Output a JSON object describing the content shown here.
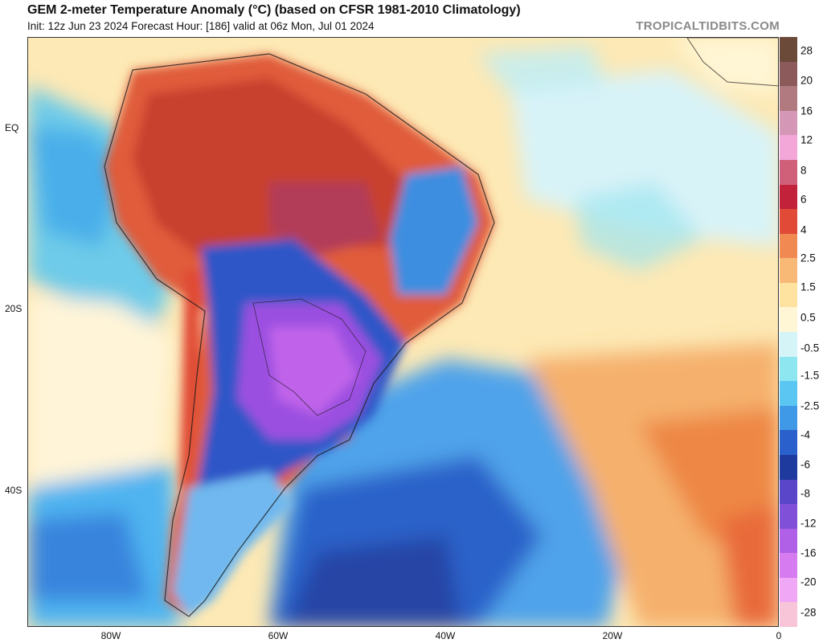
{
  "header": {
    "title": "GEM 2-meter Temperature Anomaly (°C) (based on CFSR 1981-2010 Climatology)",
    "subtitle": "Init: 12z Jun 23 2024   Forecast Hour: [186]   valid at 06z Mon, Jul 01 2024",
    "brand": "TROPICALTIDBITS.COM"
  },
  "axes": {
    "lat_labels": [
      "EQ",
      "20S",
      "40S"
    ],
    "lon_labels": [
      "80W",
      "60W",
      "40W",
      "20W",
      "0"
    ]
  },
  "colorbar": {
    "ticks": [
      "28",
      "20",
      "16",
      "12",
      "8",
      "6",
      "4",
      "2.5",
      "1.5",
      "0.5",
      "-0.5",
      "-1.5",
      "-2.5",
      "-4",
      "-6",
      "-8",
      "-12",
      "-16",
      "-20",
      "-28"
    ],
    "colors": [
      "#6b4a3a",
      "#8c5a5a",
      "#b07a80",
      "#d597b6",
      "#f2a7d8",
      "#d0607a",
      "#c2223a",
      "#e04a36",
      "#f08a52",
      "#f7b975",
      "#fde2a0",
      "#fff6d6",
      "#d4f4f8",
      "#8de6f0",
      "#5cc6f3",
      "#3f99e6",
      "#2a60cc",
      "#1f3a9e",
      "#5a46c9",
      "#8150d8",
      "#b060e6",
      "#d77cf0",
      "#f0a7f5",
      "#f7c4d8"
    ]
  },
  "map_regions": {
    "warm_north_america": "warm anomaly over northern South America",
    "cold_south_america": "cold anomaly over southern South America"
  }
}
